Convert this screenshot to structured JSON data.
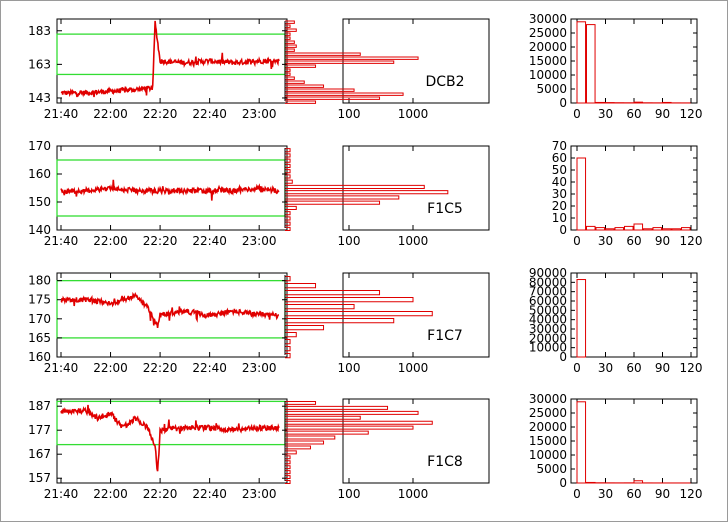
{
  "colors": {
    "trace": "#e00000",
    "band": "#33dd33",
    "frame": "#000000",
    "background": "#ffffff"
  },
  "time_axis_labels": [
    "21:40",
    "22:00",
    "22:20",
    "22:40",
    "23:00"
  ],
  "chart_data": [
    {
      "type": "line",
      "x_range": [
        "21:40",
        "23:08"
      ],
      "xticks": [
        "21:40",
        "22:00",
        "22:20",
        "22:40",
        "23:00"
      ],
      "ylim": [
        140,
        190
      ],
      "yticks": [
        143,
        163,
        183
      ],
      "band": [
        157,
        181
      ],
      "series": [
        {
          "x": [
            "21:40",
            "21:50",
            "22:00",
            "22:10",
            "22:17",
            "22:18",
            "22:20",
            "22:30",
            "22:40",
            "22:50",
            "23:00",
            "23:08"
          ],
          "values": [
            146,
            146,
            147,
            148,
            149,
            188,
            165,
            164,
            165,
            164,
            165,
            165
          ]
        }
      ]
    },
    {
      "type": "bar",
      "orientation": "horizontal",
      "scale": "log",
      "xticks": [
        "100",
        "1000"
      ],
      "label": "DCB2",
      "categories": [
        182,
        180,
        178,
        176,
        174,
        172,
        170,
        168,
        166,
        164,
        162,
        160,
        158,
        156,
        154,
        152,
        150,
        148,
        146,
        144,
        142
      ],
      "values": [
        14,
        12,
        15,
        12,
        12,
        14,
        15,
        14,
        150,
        1200,
        500,
        30,
        12,
        12,
        14,
        20,
        40,
        120,
        700,
        300,
        30
      ]
    },
    {
      "type": "bar",
      "ylim": [
        0,
        30000
      ],
      "yticks": [
        0,
        5000,
        10000,
        15000,
        20000,
        25000,
        30000
      ],
      "xlim": [
        0,
        120
      ],
      "xticks": [
        0,
        30,
        60,
        90,
        120
      ],
      "categories": [
        0,
        10,
        20,
        30,
        40,
        50,
        60,
        70,
        80,
        90,
        100,
        110
      ],
      "values": [
        29000,
        28000,
        200,
        150,
        100,
        80,
        300,
        80,
        60,
        200,
        50,
        40
      ]
    },
    {
      "type": "line",
      "x_range": [
        "21:40",
        "23:08"
      ],
      "xticks": [
        "21:40",
        "22:00",
        "22:20",
        "22:40",
        "23:00"
      ],
      "ylim": [
        140,
        170
      ],
      "yticks": [
        140,
        150,
        160,
        170
      ],
      "band": [
        145,
        165
      ],
      "series": [
        {
          "x": [
            "21:40",
            "21:50",
            "22:00",
            "22:10",
            "22:20",
            "22:30",
            "22:40",
            "22:50",
            "23:00",
            "23:08"
          ],
          "values": [
            154,
            154,
            155,
            154,
            154,
            154,
            154,
            154,
            155,
            154
          ]
        }
      ]
    },
    {
      "type": "bar",
      "orientation": "horizontal",
      "scale": "log",
      "xticks": [
        "100",
        "1000"
      ],
      "label": "F1C5",
      "categories": [
        170,
        168,
        166,
        164,
        162,
        160,
        158,
        156,
        154,
        152,
        150,
        148,
        146,
        144,
        142,
        140
      ],
      "values": [
        12,
        12,
        12,
        12,
        12,
        12,
        13,
        1500,
        3500,
        600,
        300,
        15,
        12,
        12,
        12,
        12
      ]
    },
    {
      "type": "bar",
      "ylim": [
        0,
        70
      ],
      "yticks": [
        0,
        10,
        20,
        30,
        40,
        50,
        60,
        70
      ],
      "xlim": [
        0,
        120
      ],
      "xticks": [
        0,
        30,
        60,
        90,
        120
      ],
      "categories": [
        0,
        10,
        20,
        30,
        40,
        50,
        60,
        70,
        80,
        90,
        100,
        110
      ],
      "values": [
        60,
        3,
        2,
        1,
        2,
        3,
        5,
        1,
        2,
        1,
        1,
        2
      ]
    },
    {
      "type": "line",
      "x_range": [
        "21:40",
        "23:08"
      ],
      "xticks": [
        "21:40",
        "22:00",
        "22:20",
        "22:40",
        "23:00"
      ],
      "ylim": [
        160,
        182
      ],
      "yticks": [
        160,
        165,
        170,
        175,
        180
      ],
      "band": [
        165,
        180
      ],
      "series": [
        {
          "x": [
            "21:40",
            "21:50",
            "22:00",
            "22:10",
            "22:15",
            "22:19",
            "22:20",
            "22:30",
            "22:40",
            "22:50",
            "23:00",
            "23:08"
          ],
          "values": [
            175,
            175,
            174,
            176,
            173,
            168,
            171,
            172,
            171,
            172,
            171,
            171
          ]
        }
      ]
    },
    {
      "type": "bar",
      "orientation": "horizontal",
      "scale": "log",
      "xticks": [
        "100",
        "1000"
      ],
      "label": "F1C7",
      "categories": [
        182,
        180,
        178,
        176,
        174,
        172,
        170,
        168,
        166,
        164,
        162,
        160
      ],
      "values": [
        12,
        30,
        300,
        1000,
        120,
        2000,
        500,
        40,
        15,
        12,
        12,
        12
      ]
    },
    {
      "type": "bar",
      "ylim": [
        0,
        90000
      ],
      "yticks": [
        0,
        10000,
        20000,
        30000,
        40000,
        50000,
        60000,
        70000,
        80000,
        90000
      ],
      "xlim": [
        0,
        120
      ],
      "xticks": [
        0,
        30,
        60,
        90,
        120
      ],
      "categories": [
        0,
        10,
        20,
        30,
        40,
        50,
        60,
        70,
        80,
        90,
        100,
        110
      ],
      "values": [
        83000,
        0,
        0,
        0,
        0,
        0,
        0,
        0,
        0,
        0,
        0,
        0
      ]
    },
    {
      "type": "line",
      "x_range": [
        "21:40",
        "23:08"
      ],
      "xticks": [
        "21:40",
        "22:00",
        "22:20",
        "22:40",
        "23:00"
      ],
      "ylim": [
        155,
        190
      ],
      "yticks": [
        157,
        167,
        177,
        187
      ],
      "band": [
        171,
        189
      ],
      "series": [
        {
          "x": [
            "21:40",
            "21:50",
            "21:55",
            "22:00",
            "22:05",
            "22:10",
            "22:15",
            "22:18",
            "22:19",
            "22:20",
            "22:30",
            "22:40",
            "22:50",
            "23:00",
            "23:08"
          ],
          "values": [
            185,
            185,
            182,
            184,
            178,
            182,
            178,
            170,
            159,
            177,
            178,
            178,
            177,
            178,
            178
          ]
        }
      ]
    },
    {
      "type": "bar",
      "orientation": "horizontal",
      "scale": "log",
      "xticks": [
        "100",
        "1000"
      ],
      "label": "F1C8",
      "categories": [
        189,
        187,
        185,
        183,
        181,
        179,
        177,
        175,
        173,
        171,
        169,
        167,
        165,
        163,
        161,
        159,
        157
      ],
      "values": [
        30,
        400,
        1200,
        150,
        2000,
        1000,
        200,
        60,
        40,
        25,
        15,
        12,
        12,
        12,
        12,
        12,
        12
      ]
    },
    {
      "type": "bar",
      "ylim": [
        0,
        30000
      ],
      "yticks": [
        0,
        5000,
        10000,
        15000,
        20000,
        25000,
        30000
      ],
      "xlim": [
        0,
        120
      ],
      "xticks": [
        0,
        30,
        60,
        90,
        120
      ],
      "categories": [
        0,
        10,
        20,
        30,
        40,
        50,
        60,
        70,
        80,
        90,
        100,
        110
      ],
      "values": [
        29000,
        200,
        80,
        60,
        50,
        60,
        800,
        40,
        30,
        20,
        20,
        20
      ]
    }
  ]
}
